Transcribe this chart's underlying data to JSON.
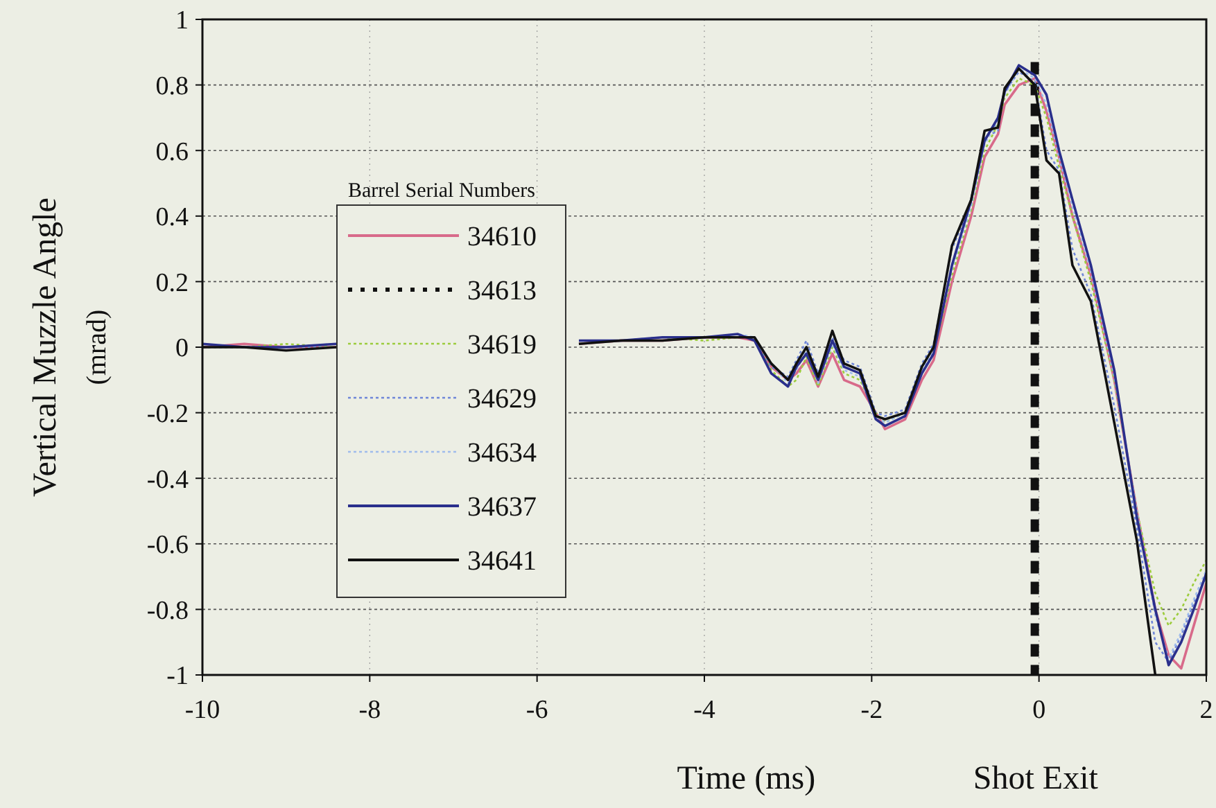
{
  "chart_data": {
    "type": "line",
    "xlabel": "Time (ms)",
    "ylabel": "Vertical Muzzle Angle (mrad)",
    "legend_title": "Barrel Serial Numbers",
    "legend": "left",
    "grid": true,
    "xlim": [
      -10,
      2
    ],
    "xticks": [
      -10,
      -8,
      -6,
      -4,
      -2,
      0,
      2
    ],
    "ylim": [
      -1,
      1
    ],
    "yticks": [
      -1,
      -0.8,
      -0.6,
      -0.4,
      -0.2,
      0,
      0.2,
      0.4,
      0.6,
      0.8,
      1
    ],
    "x": [
      -10,
      -9.5,
      -9,
      -8.4,
      -7,
      -5.5,
      -5,
      -4.5,
      -4,
      -3.6,
      -3.4,
      -3.2,
      -3.0,
      -2.9,
      -2.78,
      -2.64,
      -2.47,
      -2.33,
      -2.14,
      -1.95,
      -1.84,
      -1.6,
      -1.4,
      -1.26,
      -1.04,
      -0.81,
      -0.65,
      -0.49,
      -0.41,
      -0.24,
      -0.05,
      0.09,
      0.24,
      0.4,
      0.62,
      0.9,
      1.17,
      1.39,
      1.55,
      1.7,
      1.85,
      2.0
    ],
    "annotations": [
      "Shot Exit"
    ],
    "series": [
      {
        "name": "34610",
        "color": "#d86a8a",
        "line_style": "solid",
        "values": [
          0,
          0.01,
          0,
          0,
          null,
          0.01,
          0.02,
          0.02,
          0.03,
          0.03,
          0.02,
          -0.06,
          -0.1,
          -0.08,
          -0.04,
          -0.12,
          -0.02,
          -0.1,
          -0.12,
          -0.2,
          -0.25,
          -0.22,
          -0.1,
          -0.04,
          0.2,
          0.4,
          0.58,
          0.65,
          0.74,
          0.8,
          0.82,
          0.72,
          0.58,
          0.4,
          0.22,
          -0.1,
          -0.5,
          -0.8,
          -0.94,
          -0.98,
          -0.85,
          -0.72
        ]
      },
      {
        "name": "34613",
        "color": "#111111",
        "line_style": "dotted",
        "x": [
          -0.05,
          -0.05
        ],
        "values": [
          0.87,
          -1
        ]
      },
      {
        "name": "34619",
        "color": "#9ccc3c",
        "line_style": "dotted",
        "values": [
          0,
          0,
          0.01,
          0,
          null,
          0.01,
          0.02,
          0.03,
          0.02,
          0.03,
          0.03,
          -0.07,
          -0.12,
          -0.1,
          -0.03,
          -0.12,
          0,
          -0.08,
          -0.1,
          -0.2,
          -0.23,
          -0.2,
          -0.08,
          -0.02,
          0.22,
          0.42,
          0.6,
          0.68,
          0.76,
          0.82,
          0.8,
          0.7,
          0.55,
          0.4,
          0.2,
          -0.1,
          -0.5,
          -0.75,
          -0.85,
          -0.8,
          -0.72,
          -0.65
        ]
      },
      {
        "name": "34629",
        "color": "#6f86d8",
        "line_style": "dotted",
        "values": [
          0,
          0,
          0,
          0.01,
          null,
          0.02,
          0.02,
          0.03,
          0.03,
          0.03,
          0.03,
          -0.06,
          -0.09,
          -0.04,
          0.02,
          -0.08,
          0.03,
          -0.04,
          -0.06,
          -0.2,
          -0.21,
          -0.19,
          -0.05,
          0.01,
          0.3,
          0.44,
          0.64,
          0.66,
          0.78,
          0.84,
          0.81,
          0.6,
          0.54,
          0.3,
          0.16,
          -0.18,
          -0.55,
          -0.9,
          -0.96,
          -0.88,
          -0.78,
          -0.7
        ]
      },
      {
        "name": "34634",
        "color": "#9fbcec",
        "line_style": "dotted",
        "values": [
          0.01,
          0,
          0,
          0,
          null,
          0.01,
          0.02,
          0.02,
          0.03,
          0.04,
          0.03,
          -0.05,
          -0.11,
          -0.07,
          -0.01,
          -0.11,
          0.01,
          -0.07,
          -0.09,
          -0.21,
          -0.23,
          -0.2,
          -0.07,
          -0.01,
          0.24,
          0.43,
          0.62,
          0.69,
          0.77,
          0.85,
          0.82,
          0.74,
          0.58,
          0.43,
          0.23,
          -0.09,
          -0.5,
          -0.82,
          -0.95,
          -0.87,
          -0.77,
          -0.68
        ]
      },
      {
        "name": "34637",
        "color": "#2a2f8c",
        "line_style": "solid",
        "values": [
          0.01,
          0,
          0,
          0.01,
          null,
          0.02,
          0.02,
          0.03,
          0.03,
          0.04,
          0.02,
          -0.08,
          -0.12,
          -0.06,
          -0.02,
          -0.1,
          0.02,
          -0.06,
          -0.08,
          -0.22,
          -0.24,
          -0.21,
          -0.08,
          -0.02,
          0.25,
          0.45,
          0.63,
          0.7,
          0.78,
          0.86,
          0.83,
          0.77,
          0.6,
          0.45,
          0.25,
          -0.07,
          -0.52,
          -0.8,
          -0.97,
          -0.9,
          -0.8,
          -0.69
        ]
      },
      {
        "name": "34641",
        "color": "#111111",
        "line_style": "solid",
        "values": [
          0,
          0,
          -0.01,
          0,
          null,
          0.01,
          0.02,
          0.02,
          0.03,
          0.03,
          0.03,
          -0.05,
          -0.1,
          -0.05,
          0,
          -0.09,
          0.05,
          -0.05,
          -0.07,
          -0.21,
          -0.22,
          -0.2,
          -0.06,
          0,
          0.31,
          0.45,
          0.66,
          0.67,
          0.79,
          0.85,
          0.8,
          0.57,
          0.53,
          0.25,
          0.14,
          -0.23,
          -0.59,
          -1.0,
          null,
          null,
          null,
          null
        ]
      }
    ]
  }
}
